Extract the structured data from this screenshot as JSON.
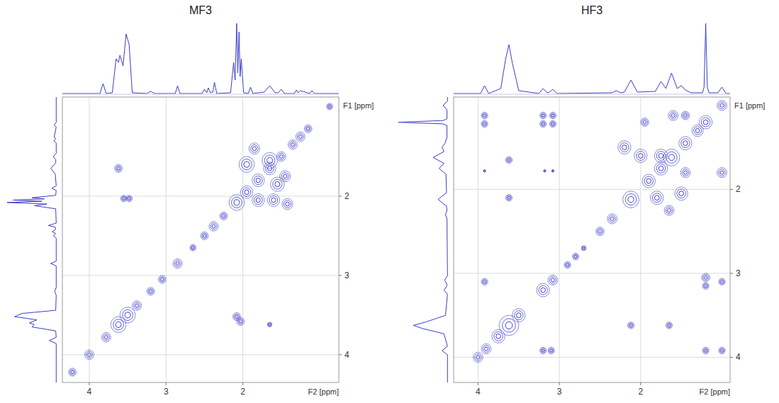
{
  "chart_data": [
    {
      "type": "contour",
      "title": "MF3",
      "x_label": "F2 [ppm]",
      "y_label": "F1 [ppm]",
      "xlim": [
        4.35,
        0.75
      ],
      "ylim": [
        0.75,
        4.35
      ],
      "xticks": [
        4,
        3,
        2
      ],
      "yticks": [
        2,
        3,
        4
      ],
      "grid": true,
      "color": "#3c3cc8",
      "spectrum": {
        "x": [
          4.35,
          3.86,
          3.82,
          3.78,
          3.7,
          3.65,
          3.62,
          3.6,
          3.56,
          3.52,
          3.48,
          3.44,
          3.25,
          3.2,
          3.15,
          2.88,
          2.85,
          2.82,
          2.53,
          2.5,
          2.47,
          2.45,
          2.42,
          2.39,
          2.37,
          2.34,
          2.16,
          2.12,
          2.1,
          2.08,
          2.065,
          2.05,
          2.035,
          2.02,
          1.99,
          1.93,
          1.9,
          1.87,
          1.72,
          1.65,
          1.58,
          1.54,
          1.5,
          1.46,
          1.33,
          1.3,
          1.28,
          1.25,
          1.13,
          1.1,
          1.07,
          0.75
        ],
        "values": [
          1,
          1,
          15,
          1,
          2,
          50,
          45,
          55,
          40,
          85,
          70,
          2,
          1,
          4,
          1,
          1,
          12,
          1,
          1,
          7,
          2,
          9,
          2,
          3,
          17,
          1,
          2,
          45,
          20,
          100,
          30,
          88,
          25,
          50,
          2,
          1,
          10,
          1,
          3,
          12,
          2,
          2,
          7,
          1,
          1,
          6,
          2,
          5,
          1,
          5,
          1,
          1
        ]
      },
      "peaks": {
        "x": [
          4.22,
          4.0,
          3.78,
          3.62,
          3.5,
          3.38,
          3.2,
          3.05,
          2.85,
          2.65,
          2.5,
          2.38,
          2.25,
          2.08,
          1.95,
          1.8,
          1.65,
          1.5,
          1.35,
          1.25,
          1.15,
          0.87,
          3.62,
          3.55,
          3.48,
          2.08,
          2.03,
          1.65,
          1.95,
          1.65,
          1.55,
          1.8,
          1.6,
          1.42,
          1.85,
          1.45
        ],
        "y": [
          4.22,
          4.0,
          3.78,
          3.62,
          3.5,
          3.38,
          3.2,
          3.05,
          2.85,
          2.65,
          2.5,
          2.38,
          2.25,
          2.08,
          1.95,
          1.8,
          1.65,
          1.5,
          1.35,
          1.25,
          1.15,
          0.87,
          1.65,
          2.03,
          2.03,
          3.52,
          3.58,
          3.62,
          1.6,
          1.55,
          1.85,
          2.05,
          2.05,
          2.1,
          1.4,
          1.75
        ],
        "size": [
          0.05,
          0.06,
          0.06,
          0.1,
          0.1,
          0.06,
          0.05,
          0.05,
          0.06,
          0.04,
          0.05,
          0.06,
          0.05,
          0.1,
          0.08,
          0.08,
          0.08,
          0.06,
          0.06,
          0.06,
          0.05,
          0.04,
          0.05,
          0.04,
          0.04,
          0.05,
          0.05,
          0.03,
          0.1,
          0.1,
          0.09,
          0.08,
          0.08,
          0.07,
          0.07,
          0.07
        ]
      }
    },
    {
      "type": "contour",
      "title": "HF3",
      "x_label": "F2 [ppm]",
      "y_label": "F1 [ppm]",
      "xlim": [
        4.3,
        0.9
      ],
      "ylim": [
        0.9,
        4.3
      ],
      "xticks": [
        4,
        3,
        2
      ],
      "yticks": [
        2,
        3,
        4
      ],
      "grid": true,
      "color": "#3c3cc8",
      "spectrum": {
        "x": [
          4.3,
          3.97,
          3.92,
          3.87,
          3.72,
          3.66,
          3.62,
          3.58,
          3.5,
          3.25,
          3.2,
          3.15,
          3.12,
          3.08,
          3.03,
          2.35,
          2.3,
          2.25,
          2.2,
          2.12,
          2.04,
          1.82,
          1.75,
          1.69,
          1.62,
          1.55,
          1.5,
          1.45,
          1.38,
          1.24,
          1.22,
          1.2,
          1.18,
          1.16,
          1.05,
          1.0,
          0.95,
          0.9
        ],
        "values": [
          1,
          1,
          12,
          1,
          8,
          50,
          70,
          45,
          5,
          1,
          8,
          2,
          3,
          7,
          1,
          2,
          5,
          2,
          3,
          20,
          3,
          4,
          18,
          8,
          30,
          8,
          12,
          6,
          2,
          2,
          10,
          100,
          10,
          2,
          2,
          10,
          1,
          1
        ]
      },
      "peaks": {
        "x": [
          4.0,
          3.9,
          3.75,
          3.62,
          3.5,
          3.2,
          3.08,
          2.9,
          2.8,
          2.7,
          2.5,
          2.35,
          2.12,
          1.9,
          1.75,
          1.62,
          1.45,
          1.3,
          1.2,
          1.0,
          3.92,
          3.92,
          3.2,
          3.08,
          3.2,
          3.08,
          3.62,
          3.62,
          3.92,
          3.18,
          3.08,
          3.92,
          3.2,
          3.1,
          2.12,
          1.65,
          1.2,
          1.2,
          1.0,
          1.2,
          1.0,
          1.0,
          1.6,
          1.45,
          2.2,
          2.0,
          1.75,
          1.8,
          1.5,
          1.65,
          1.45,
          1.95
        ],
        "y": [
          4.0,
          3.9,
          3.75,
          3.62,
          3.5,
          3.2,
          3.08,
          2.9,
          2.8,
          2.7,
          2.5,
          2.35,
          2.12,
          1.9,
          1.75,
          1.62,
          1.45,
          1.3,
          1.2,
          1.0,
          1.12,
          1.22,
          1.12,
          1.12,
          1.22,
          1.22,
          1.65,
          2.1,
          1.78,
          1.78,
          1.78,
          3.1,
          3.92,
          3.92,
          3.62,
          3.62,
          3.05,
          3.15,
          3.1,
          3.92,
          3.92,
          1.8,
          1.12,
          1.12,
          1.5,
          1.6,
          1.6,
          2.1,
          2.05,
          2.25,
          1.8,
          1.2
        ],
        "size": [
          0.06,
          0.06,
          0.08,
          0.12,
          0.08,
          0.08,
          0.06,
          0.04,
          0.04,
          0.03,
          0.05,
          0.06,
          0.1,
          0.08,
          0.08,
          0.1,
          0.08,
          0.07,
          0.08,
          0.06,
          0.04,
          0.04,
          0.04,
          0.04,
          0.04,
          0.04,
          0.04,
          0.04,
          0.015,
          0.015,
          0.015,
          0.04,
          0.04,
          0.04,
          0.04,
          0.04,
          0.05,
          0.04,
          0.04,
          0.04,
          0.04,
          0.06,
          0.06,
          0.05,
          0.08,
          0.08,
          0.08,
          0.08,
          0.08,
          0.06,
          0.06,
          0.05
        ]
      }
    }
  ]
}
